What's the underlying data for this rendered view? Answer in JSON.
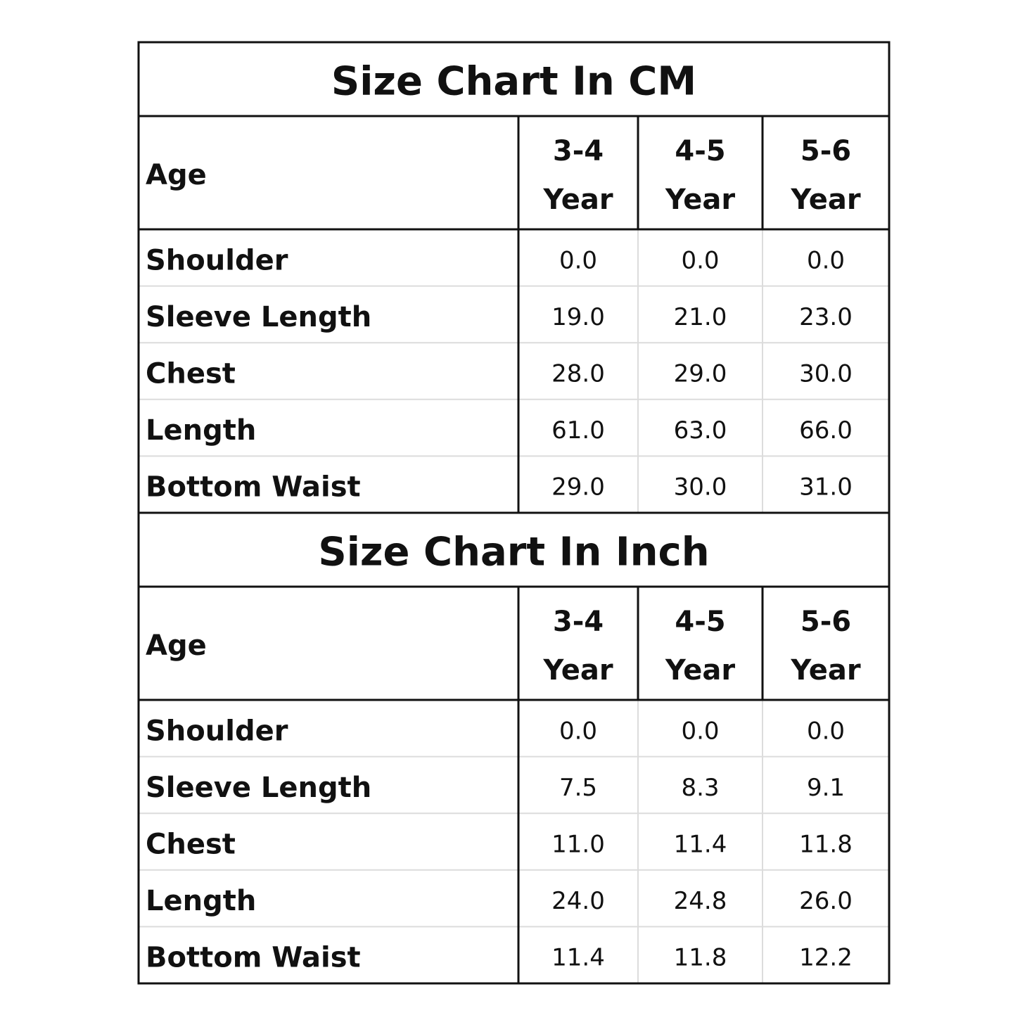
{
  "tables": [
    {
      "title": "Size Chart In CM",
      "header": {
        "label": "Age",
        "columns": [
          [
            "3-4",
            "Year"
          ],
          [
            "4-5",
            "Year"
          ],
          [
            "5-6",
            "Year"
          ]
        ]
      },
      "rows": [
        {
          "label": "Shoulder",
          "values": [
            "0.0",
            "0.0",
            "0.0"
          ]
        },
        {
          "label": "Sleeve Length",
          "values": [
            "19.0",
            "21.0",
            "23.0"
          ]
        },
        {
          "label": "Chest",
          "values": [
            "28.0",
            "29.0",
            "30.0"
          ]
        },
        {
          "label": "Length",
          "values": [
            "61.0",
            "63.0",
            "66.0"
          ]
        },
        {
          "label": "Bottom Waist",
          "values": [
            "29.0",
            "30.0",
            "31.0"
          ]
        }
      ]
    },
    {
      "title": "Size Chart In Inch",
      "header": {
        "label": "Age",
        "columns": [
          [
            "3-4",
            "Year"
          ],
          [
            "4-5",
            "Year"
          ],
          [
            "5-6",
            "Year"
          ]
        ]
      },
      "rows": [
        {
          "label": "Shoulder",
          "values": [
            "0.0",
            "0.0",
            "0.0"
          ]
        },
        {
          "label": "Sleeve Length",
          "values": [
            "7.5",
            "8.3",
            "9.1"
          ]
        },
        {
          "label": "Chest",
          "values": [
            "11.0",
            "11.4",
            "11.8"
          ]
        },
        {
          "label": "Length",
          "values": [
            "24.0",
            "24.8",
            "26.0"
          ]
        },
        {
          "label": "Bottom Waist",
          "values": [
            "11.4",
            "11.8",
            "12.2"
          ]
        }
      ]
    }
  ]
}
